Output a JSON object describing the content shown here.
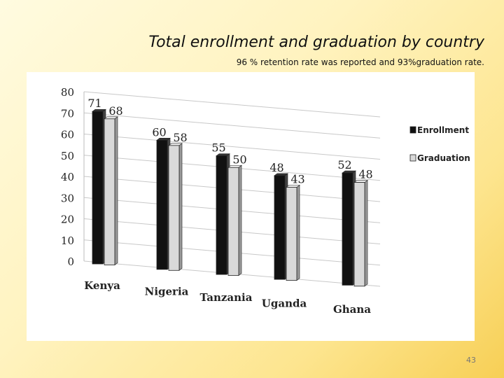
{
  "slide": {
    "title": "Total enrollment and graduation by country",
    "subtitle": "96 % retention rate was reported and 93%graduation rate.",
    "page_number": "43"
  },
  "chart_data": {
    "type": "bar",
    "title": "",
    "xlabel": "",
    "ylabel": "",
    "categories": [
      "Kenya",
      "Nigeria",
      "Tanzania",
      "Uganda",
      "Ghana"
    ],
    "series": [
      {
        "name": "Enrollment",
        "values": [
          71,
          60,
          55,
          48,
          52
        ],
        "color": "#111111"
      },
      {
        "name": "Graduation",
        "values": [
          68,
          58,
          50,
          43,
          48
        ],
        "color": "#d9d9d9"
      }
    ],
    "ylim": [
      0,
      80
    ],
    "yticks": [
      "0",
      "10",
      "20",
      "30",
      "40",
      "50",
      "60",
      "70",
      "80"
    ],
    "grid": true,
    "legend": "right"
  }
}
